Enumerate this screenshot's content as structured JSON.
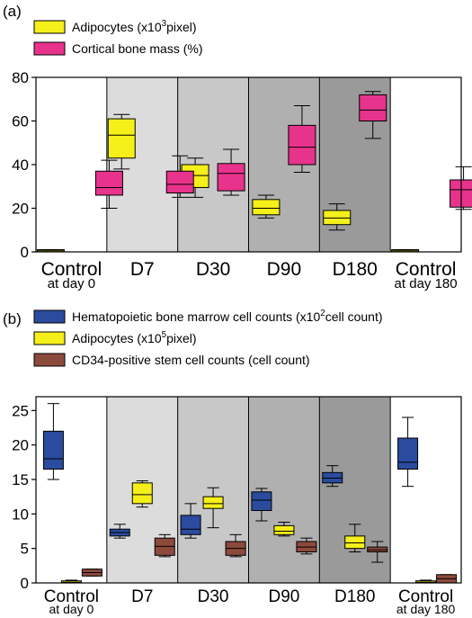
{
  "chart_data": [
    {
      "type": "box",
      "panel_label": "(a)",
      "legend_position": "top-left",
      "legend": [
        {
          "name_main": "Adipocytes (x10",
          "name_sup": "3",
          "name_tail": "pixel)",
          "color": "#f5ef1a"
        },
        {
          "name_main": "Cortical bone mass (%)",
          "name_sup": "",
          "name_tail": "",
          "color": "#e8338c"
        }
      ],
      "ylim": [
        0,
        80
      ],
      "yticks": [
        "0",
        "20",
        "40",
        "60",
        "80"
      ],
      "categories": [
        {
          "label": "Control",
          "sublabel": "at day 0",
          "shade": "#ffffff"
        },
        {
          "label": "D7",
          "sublabel": "",
          "shade": "#dcdcdc"
        },
        {
          "label": "D30",
          "sublabel": "",
          "shade": "#c8c8c8"
        },
        {
          "label": "D90",
          "sublabel": "",
          "shade": "#b0b0b0"
        },
        {
          "label": "D180",
          "sublabel": "",
          "shade": "#9a9a9a"
        },
        {
          "label": "Control",
          "sublabel": "at day 180",
          "shade": "#ffffff"
        }
      ],
      "series": [
        {
          "name": "Adipocytes",
          "color": "#f5ef1a",
          "boxes": [
            {
              "min": 0,
              "q1": 0,
              "median": 0.5,
              "q3": 1,
              "max": 1
            },
            {
              "min": 38,
              "q1": 43,
              "median": 53.5,
              "q3": 61,
              "max": 63
            },
            {
              "min": 25,
              "q1": 29.5,
              "median": 35,
              "q3": 40,
              "max": 43
            },
            {
              "min": 15.5,
              "q1": 17,
              "median": 20,
              "q3": 24,
              "max": 26
            },
            {
              "min": 10,
              "q1": 12.5,
              "median": 15.5,
              "q3": 19,
              "max": 22
            },
            {
              "min": 0,
              "q1": 0,
              "median": 0.5,
              "q3": 1,
              "max": 1
            }
          ]
        },
        {
          "name": "Cortical bone mass (%)",
          "color": "#e8338c",
          "boxes": [
            {
              "min": 20,
              "q1": 26,
              "median": 29.5,
              "q3": 37,
              "max": 42
            },
            {
              "min": 25,
              "q1": 27,
              "median": 31,
              "q3": 37,
              "max": 44
            },
            {
              "min": 26,
              "q1": 28,
              "median": 36,
              "q3": 40.5,
              "max": 47
            },
            {
              "min": 36.5,
              "q1": 40,
              "median": 48,
              "q3": 58,
              "max": 67
            },
            {
              "min": 52,
              "q1": 60,
              "median": 65,
              "q3": 72,
              "max": 73.5
            },
            {
              "min": 19.5,
              "q1": 20.5,
              "median": 28.5,
              "q3": 33,
              "max": 39
            }
          ]
        }
      ]
    },
    {
      "type": "box",
      "panel_label": "(b)",
      "legend_position": "top-left",
      "legend": [
        {
          "name_main": "Hematopoietic bone marrow cell counts (x10",
          "name_sup": "2",
          "name_tail": "cell count)",
          "color": "#2a4b9e"
        },
        {
          "name_main": "Adipocytes (x10",
          "name_sup": "5",
          "name_tail": "pixel)",
          "color": "#f5ef1a"
        },
        {
          "name_main": "CD34-positive stem cell counts (cell count)",
          "name_sup": "",
          "name_tail": "",
          "color": "#8c4a3c"
        }
      ],
      "ylim": [
        0,
        27
      ],
      "yticks": [
        "0",
        "5",
        "10",
        "15",
        "20",
        "25"
      ],
      "categories": [
        {
          "label": "Control",
          "sublabel": "at day 0",
          "shade": "#ffffff"
        },
        {
          "label": "D7",
          "sublabel": "",
          "shade": "#dcdcdc"
        },
        {
          "label": "D30",
          "sublabel": "",
          "shade": "#c8c8c8"
        },
        {
          "label": "D90",
          "sublabel": "",
          "shade": "#b0b0b0"
        },
        {
          "label": "D180",
          "sublabel": "",
          "shade": "#9a9a9a"
        },
        {
          "label": "Control",
          "sublabel": "at day 180",
          "shade": "#ffffff"
        }
      ],
      "series": [
        {
          "name": "Hematopoietic bone marrow cell counts",
          "color": "#2a4b9e",
          "boxes": [
            {
              "min": 15,
              "q1": 16.5,
              "median": 18,
              "q3": 22,
              "max": 26
            },
            {
              "min": 6.5,
              "q1": 6.8,
              "median": 7.3,
              "q3": 7.8,
              "max": 8.5
            },
            {
              "min": 6.5,
              "q1": 7,
              "median": 7.8,
              "q3": 9.8,
              "max": 11.5
            },
            {
              "min": 9,
              "q1": 10.5,
              "median": 12,
              "q3": 13.2,
              "max": 13.7
            },
            {
              "min": 14,
              "q1": 14.5,
              "median": 15.2,
              "q3": 16,
              "max": 17
            },
            {
              "min": 14,
              "q1": 16.5,
              "median": 17.5,
              "q3": 21,
              "max": 24
            }
          ]
        },
        {
          "name": "Adipocytes",
          "color": "#f5ef1a",
          "boxes": [
            {
              "min": 0,
              "q1": 0,
              "median": 0.1,
              "q3": 0.3,
              "max": 0.4
            },
            {
              "min": 11,
              "q1": 11.5,
              "median": 12.8,
              "q3": 14.5,
              "max": 14.8
            },
            {
              "min": 8,
              "q1": 10.8,
              "median": 11.5,
              "q3": 12.5,
              "max": 13.8
            },
            {
              "min": 6.8,
              "q1": 7,
              "median": 7.5,
              "q3": 8.3,
              "max": 8.8
            },
            {
              "min": 4.5,
              "q1": 5,
              "median": 5.8,
              "q3": 6.8,
              "max": 8.5
            },
            {
              "min": 0,
              "q1": 0,
              "median": 0.1,
              "q3": 0.3,
              "max": 0.4
            }
          ]
        },
        {
          "name": "CD34-positive stem cell counts",
          "color": "#8c4a3c",
          "boxes": [
            {
              "min": 1,
              "q1": 1,
              "median": 1.5,
              "q3": 2,
              "max": 2
            },
            {
              "min": 3.8,
              "q1": 4,
              "median": 5.3,
              "q3": 6.5,
              "max": 7
            },
            {
              "min": 3.8,
              "q1": 4,
              "median": 5,
              "q3": 6,
              "max": 7
            },
            {
              "min": 4.2,
              "q1": 4.5,
              "median": 5.2,
              "q3": 6,
              "max": 6.5
            },
            {
              "min": 3,
              "q1": 4.5,
              "median": 4.8,
              "q3": 5.2,
              "max": 6
            },
            {
              "min": 0,
              "q1": 0,
              "median": 0.6,
              "q3": 1.2,
              "max": 1.2
            }
          ]
        }
      ]
    }
  ]
}
